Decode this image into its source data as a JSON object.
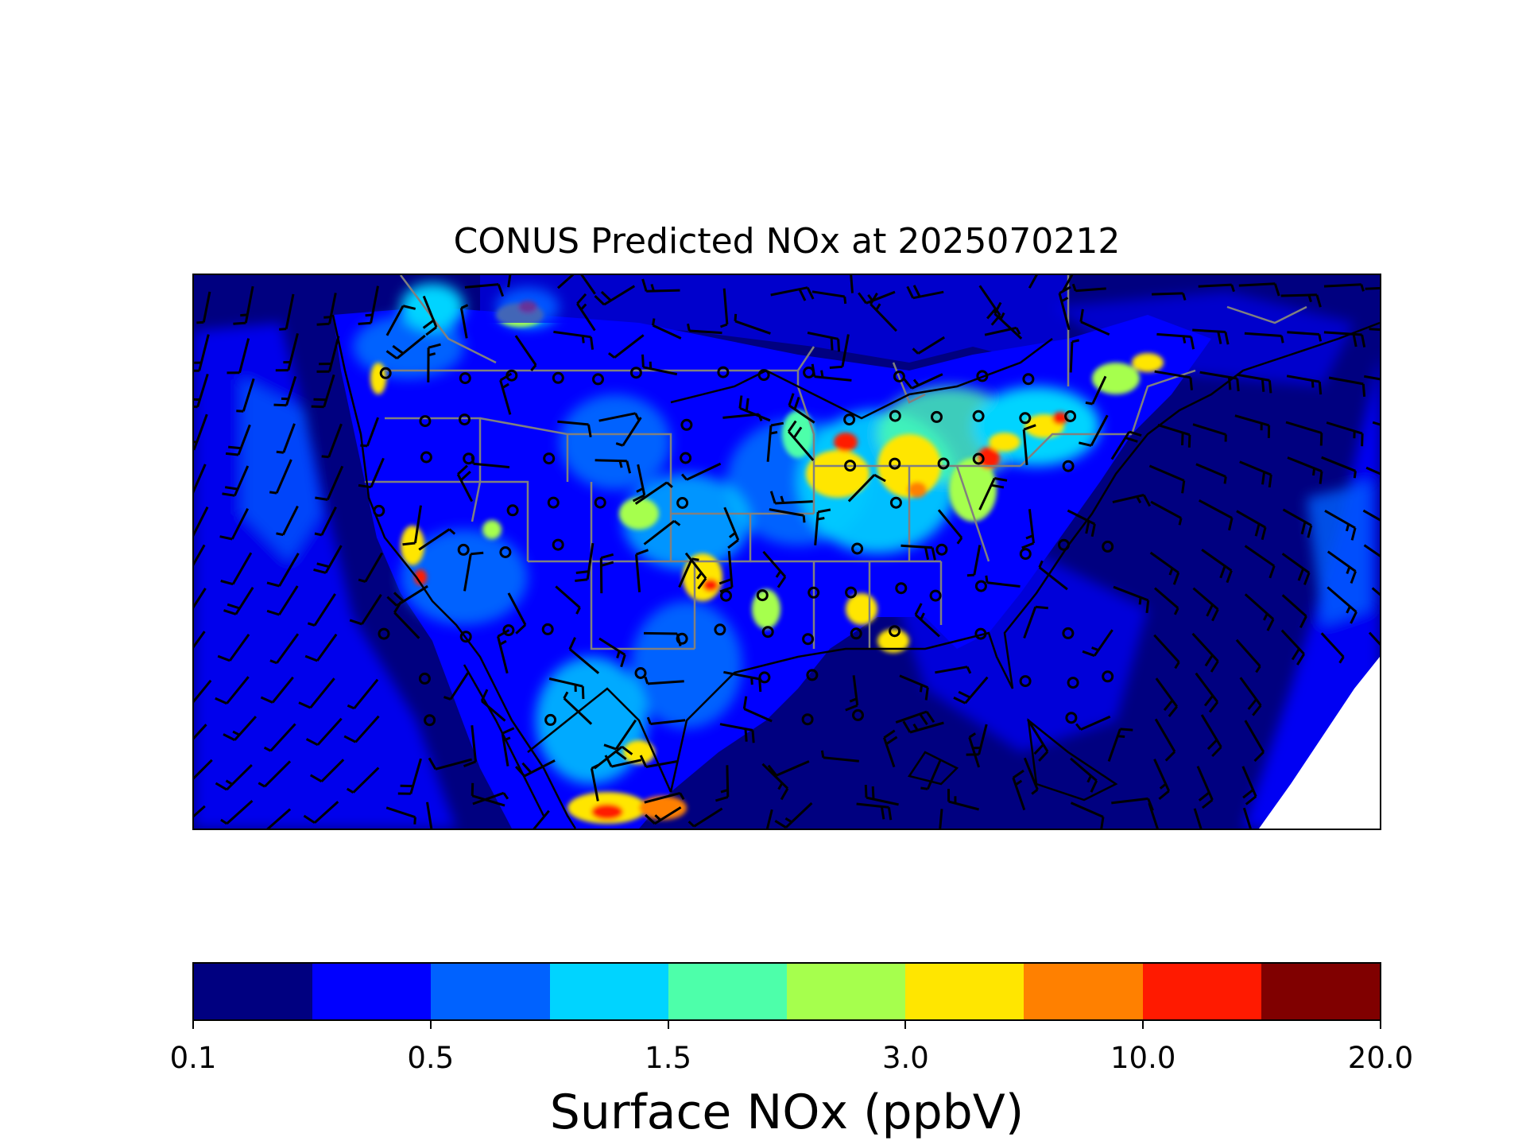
{
  "title": "CONUS Predicted NOx at 2025070212",
  "colorbar": {
    "label": "Surface NOx (ppbV)",
    "colors": [
      "#000080",
      "#0000ff",
      "#0062ff",
      "#00d4ff",
      "#4dffaa",
      "#a6ff4d",
      "#ffe600",
      "#ff8000",
      "#ff1a00",
      "#800000"
    ],
    "boundaries": [
      0.1,
      0.25,
      0.5,
      1.0,
      1.5,
      2.0,
      3.0,
      5.0,
      10.0,
      15.0,
      20.0
    ],
    "tick_labels": [
      "0.1",
      "0.5",
      "1.5",
      "3.0",
      "10.0",
      "20.0"
    ],
    "tick_boundary_index": [
      0,
      2,
      4,
      6,
      8,
      10
    ]
  },
  "map_colors": {
    "ocean": "#000080",
    "state_borders": "#808080",
    "coastlines": "#000000",
    "wind_barbs": "#000000",
    "no_data": "#ffffff"
  },
  "features": {
    "basemap_region": "CONUS",
    "field": "Surface NOx",
    "overlays": [
      "state-borders",
      "coastlines",
      "wind-barbs",
      "calm-wind-circles"
    ]
  }
}
